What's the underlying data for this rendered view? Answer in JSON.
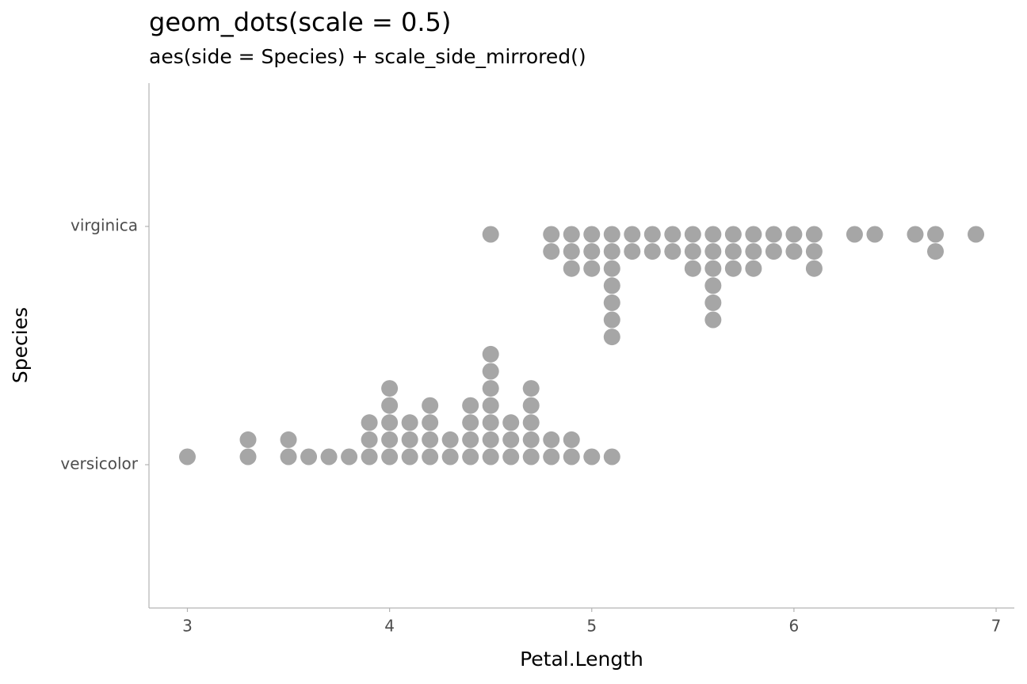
{
  "chart_data": {
    "type": "dots",
    "title": "geom_dots(scale = 0.5)",
    "subtitle": "aes(side = Species) + scale_side_mirrored()",
    "x_label": "Petal.Length",
    "y_label": "Species",
    "xlim": [
      2.81,
      7.09
    ],
    "xticks": [
      3,
      4,
      5,
      6,
      7
    ],
    "color": "#a6a6a6",
    "series": [
      {
        "name": "versicolor",
        "side": "top",
        "values": [
          3.0,
          3.3,
          3.3,
          3.5,
          3.5,
          3.6,
          3.7,
          3.8,
          3.9,
          3.9,
          3.9,
          4.0,
          4.0,
          4.0,
          4.0,
          4.0,
          4.1,
          4.1,
          4.1,
          4.2,
          4.2,
          4.2,
          4.2,
          4.3,
          4.3,
          4.4,
          4.4,
          4.4,
          4.4,
          4.5,
          4.5,
          4.5,
          4.5,
          4.5,
          4.5,
          4.5,
          4.6,
          4.6,
          4.6,
          4.7,
          4.7,
          4.7,
          4.7,
          4.7,
          4.8,
          4.8,
          4.9,
          4.9,
          5.0,
          5.1
        ]
      },
      {
        "name": "virginica",
        "side": "bottom",
        "values": [
          4.5,
          4.8,
          4.8,
          4.9,
          4.9,
          4.9,
          5.0,
          5.0,
          5.0,
          5.1,
          5.1,
          5.1,
          5.1,
          5.1,
          5.1,
          5.1,
          5.2,
          5.2,
          5.3,
          5.3,
          5.4,
          5.4,
          5.5,
          5.5,
          5.5,
          5.6,
          5.6,
          5.6,
          5.6,
          5.6,
          5.6,
          5.7,
          5.7,
          5.7,
          5.8,
          5.8,
          5.8,
          5.9,
          5.9,
          6.0,
          6.0,
          6.1,
          6.1,
          6.1,
          6.3,
          6.4,
          6.6,
          6.7,
          6.7,
          6.9
        ]
      }
    ]
  }
}
